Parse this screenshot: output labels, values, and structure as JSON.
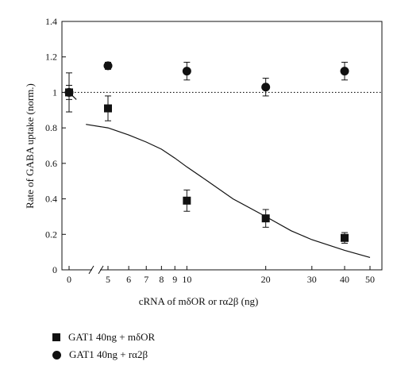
{
  "chart_data": {
    "type": "scatter",
    "xlabel": "cRNA of mδOR or rα2β (ng)",
    "ylabel": "Rate of GABA uptake (norm.)",
    "ylim": [
      0,
      1.4
    ],
    "y_ticks": [
      "0",
      "0.2",
      "0.4",
      "0.6",
      "0.8",
      "1",
      "1.2",
      "1.4"
    ],
    "x_ticks": [
      "0",
      "5",
      "6",
      "7",
      "8",
      "9",
      "10",
      "20",
      "30",
      "40",
      "50"
    ],
    "x_scale": "broken axis: 0 then logarithmic 5–50",
    "reference_line": {
      "y": 1,
      "style": "dotted"
    },
    "series": [
      {
        "name": "GAT1 40ng + mδOR",
        "marker": "square",
        "points": [
          {
            "x": 0,
            "y": 1.0,
            "err": 0.04
          },
          {
            "x": 5,
            "y": 0.91,
            "err": 0.07
          },
          {
            "x": 10,
            "y": 0.39,
            "err": 0.06
          },
          {
            "x": 20,
            "y": 0.29,
            "err": 0.05
          },
          {
            "x": 40,
            "y": 0.18,
            "err": 0.03
          }
        ],
        "fit": [
          [
            0,
            1.0
          ],
          [
            1,
            0.98
          ],
          [
            2,
            0.96
          ],
          [
            4.6,
            0.82
          ],
          [
            5,
            0.8
          ],
          [
            6,
            0.76
          ],
          [
            7,
            0.72
          ],
          [
            8,
            0.68
          ],
          [
            9,
            0.63
          ],
          [
            10,
            0.58
          ],
          [
            12,
            0.5
          ],
          [
            15,
            0.4
          ],
          [
            20,
            0.3
          ],
          [
            25,
            0.22
          ],
          [
            30,
            0.17
          ],
          [
            40,
            0.11
          ],
          [
            50,
            0.07
          ]
        ]
      },
      {
        "name": "GAT1 40ng + rα2β",
        "marker": "circle",
        "points": [
          {
            "x": 0,
            "y": 1.0,
            "err": 0.11
          },
          {
            "x": 5,
            "y": 1.15,
            "err": 0.02
          },
          {
            "x": 10,
            "y": 1.12,
            "err": 0.05
          },
          {
            "x": 20,
            "y": 1.03,
            "err": 0.05
          },
          {
            "x": 40,
            "y": 1.12,
            "err": 0.05
          }
        ]
      }
    ],
    "colors": {
      "marks": "#111111",
      "background": "#ffffff"
    }
  }
}
